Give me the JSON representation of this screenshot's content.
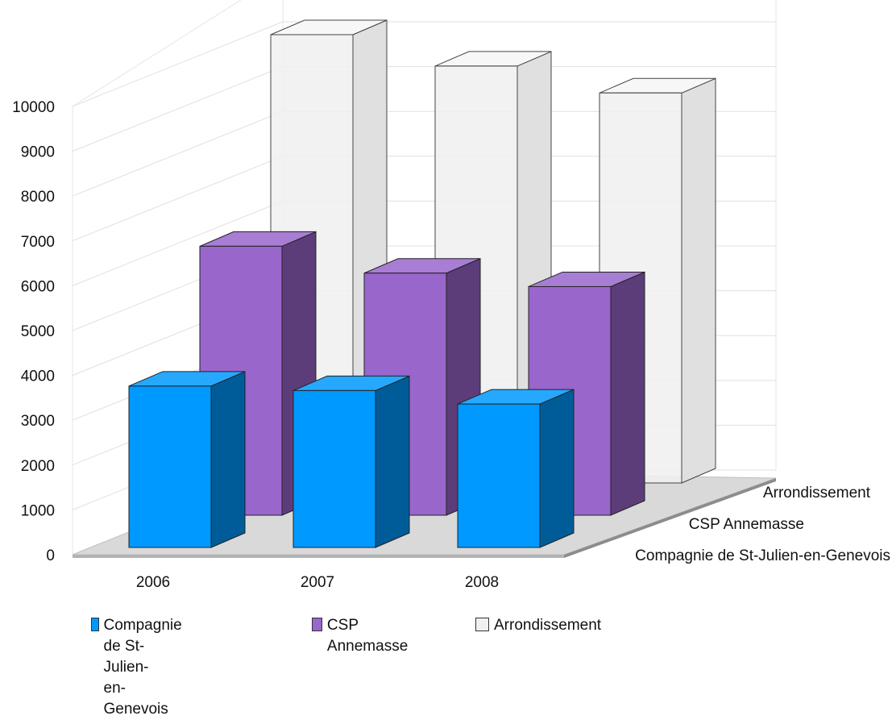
{
  "chart_data": {
    "type": "bar",
    "categories": [
      "2006",
      "2007",
      "2008"
    ],
    "series": [
      {
        "name": "Compagnie de St-Julien-en-Genevois",
        "values": [
          3600,
          3500,
          3200
        ],
        "color": "#0099ff"
      },
      {
        "name": "CSP Annemasse",
        "values": [
          6000,
          5400,
          5100
        ],
        "color": "#9966cc"
      },
      {
        "name": "Arrondissement",
        "values": [
          10000,
          9300,
          8700
        ],
        "color": "#f0f0f0"
      }
    ],
    "y_ticks": [
      "0",
      "1000",
      "2000",
      "3000",
      "4000",
      "5000",
      "6000",
      "7000",
      "8000",
      "9000",
      "10000"
    ],
    "ylim": [
      0,
      10000
    ],
    "depth_labels": [
      "Compagnie de St-Julien-en-Genevois",
      "CSP Annemasse",
      "Arrondissement"
    ],
    "legend": {
      "position": "bottom",
      "items": [
        {
          "label_line1": "Compagnie de St-Julien-",
          "label_line2": "en-Genevois",
          "color": "#0099ff"
        },
        {
          "label_line1": "CSP Annemasse",
          "label_line2": "",
          "color": "#9966cc"
        },
        {
          "label_line1": "Arrondissement",
          "label_line2": "",
          "color": "#f0f0f0"
        }
      ]
    },
    "grid": true,
    "style": "3d-bar"
  }
}
